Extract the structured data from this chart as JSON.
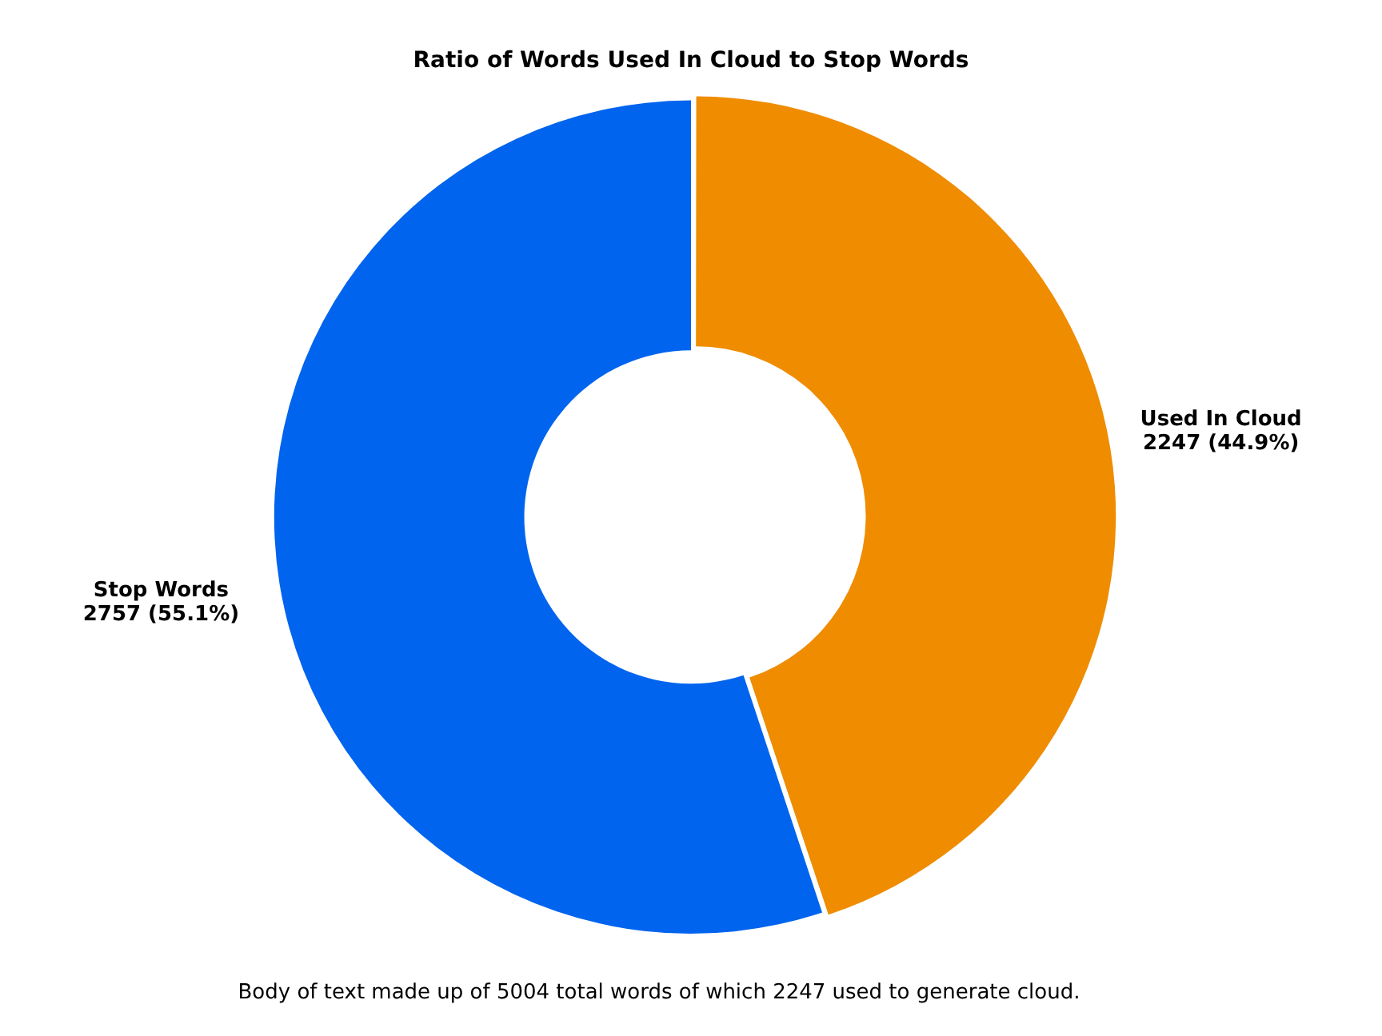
{
  "chart_data": {
    "type": "donut",
    "title": "Ratio of Words Used In Cloud to Stop Words",
    "categories": [
      "Used In Cloud",
      "Stop Words"
    ],
    "values": [
      2247,
      2757
    ],
    "colors": [
      "#ef8c00",
      "#0064ee"
    ],
    "value_labels": [
      "2247 (44.9%)",
      "2757 (55.1%)"
    ],
    "annotations": [
      "Body of text made up of 5004 total words of which 2247 used to generate cloud."
    ],
    "legend": false
  }
}
